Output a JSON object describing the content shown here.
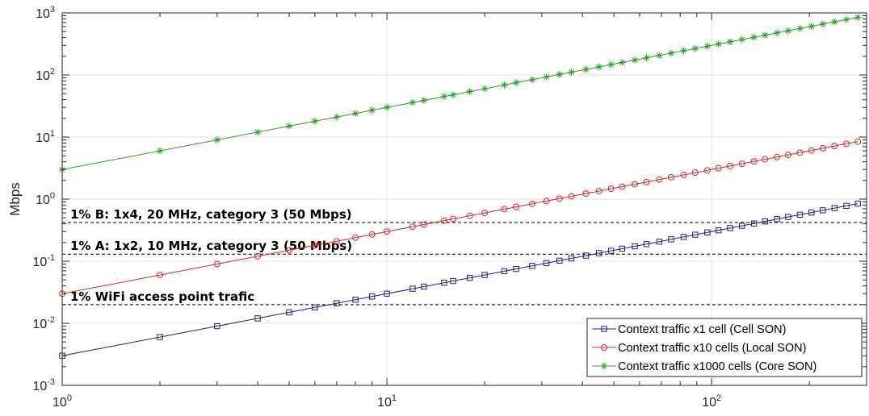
{
  "chart_data": {
    "type": "line",
    "xscale": "log",
    "yscale": "log",
    "xlim": [
      1,
      300
    ],
    "ylim": [
      0.001,
      1000
    ],
    "grid": true,
    "ylabel": "Mbps",
    "xticks": [
      {
        "base": "10",
        "exp": "0"
      },
      {
        "base": "10",
        "exp": "1"
      },
      {
        "base": "10",
        "exp": "2"
      }
    ],
    "yticks": [
      {
        "base": "10",
        "exp": "-3"
      },
      {
        "base": "10",
        "exp": "-2"
      },
      {
        "base": "10",
        "exp": "-1"
      },
      {
        "base": "10",
        "exp": "0"
      },
      {
        "base": "10",
        "exp": "1"
      },
      {
        "base": "10",
        "exp": "2"
      },
      {
        "base": "10",
        "exp": "3"
      }
    ],
    "x": [
      1,
      2,
      3,
      4,
      5,
      6,
      7,
      8,
      9,
      10,
      12,
      13,
      15,
      16,
      18,
      20,
      23,
      25,
      28,
      31,
      34,
      37,
      41,
      45,
      49,
      53,
      58,
      63,
      69,
      75,
      82,
      89,
      97,
      105,
      114,
      124,
      135,
      146,
      159,
      172,
      187,
      203,
      220,
      239,
      260,
      282
    ],
    "series": [
      {
        "name": "Context traffic x1 cell (Cell SON)",
        "color": "#1f1f7a",
        "marker": "square",
        "per_unit": 0.003
      },
      {
        "name": "Context traffic x10 cells (Local SON)",
        "color": "#d62728",
        "marker": "circle",
        "per_unit": 0.03
      },
      {
        "name": "Context traffic x1000 cells (Core SON)",
        "color": "#2ca02c",
        "marker": "asterisk",
        "per_unit": 3
      }
    ],
    "thresholds": [
      {
        "label": "1% B: 1x4, 20 MHz, category 3 (50 Mbps)",
        "value": 0.42
      },
      {
        "label": "1% A: 1x2, 10 MHz, category 3 (50 Mbps)",
        "value": 0.13
      },
      {
        "label": "1% WiFi access point trafic",
        "value": 0.02
      }
    ],
    "legend_position": "bottom-right"
  }
}
